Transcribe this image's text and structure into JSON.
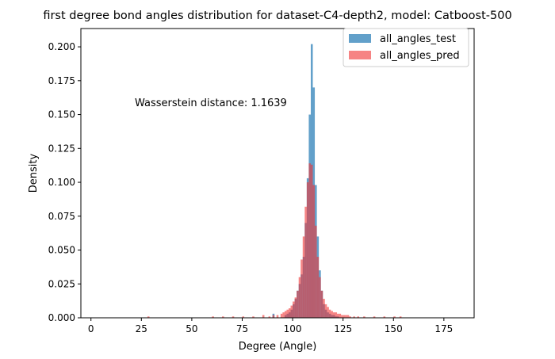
{
  "chart_data": {
    "type": "bar",
    "title": "first degree bond angles distribution for dataset-C4-depth2, model: Catboost-500",
    "xlabel": "Degree (Angle)",
    "ylabel": "Density",
    "xlim": [
      -5,
      190
    ],
    "ylim": [
      0,
      0.2135
    ],
    "xticks": [
      0,
      25,
      50,
      75,
      100,
      125,
      150,
      175
    ],
    "yticks": [
      0.0,
      0.025,
      0.05,
      0.075,
      0.1,
      0.125,
      0.15,
      0.175,
      0.2
    ],
    "ytick_labels": [
      "0.000",
      "0.025",
      "0.050",
      "0.075",
      "0.100",
      "0.125",
      "0.150",
      "0.175",
      "0.200"
    ],
    "grid": false,
    "legend_position": "top-right",
    "annotation": "Wasserstein distance: 1.1639",
    "bin_width": 1.0,
    "series": [
      {
        "name": "all_angles_test",
        "color": "#1f77b4",
        "opacity": 0.7,
        "bins": [
          [
            90,
            0.003
          ],
          [
            96,
            0.002
          ],
          [
            97,
            0.003
          ],
          [
            98,
            0.004
          ],
          [
            99,
            0.006
          ],
          [
            100,
            0.01
          ],
          [
            101,
            0.014
          ],
          [
            102,
            0.02
          ],
          [
            103,
            0.025
          ],
          [
            104,
            0.032
          ],
          [
            105,
            0.045
          ],
          [
            106,
            0.07
          ],
          [
            107,
            0.103
          ],
          [
            108,
            0.15
          ],
          [
            109,
            0.202
          ],
          [
            110,
            0.17
          ],
          [
            111,
            0.098
          ],
          [
            112,
            0.06
          ],
          [
            113,
            0.035
          ],
          [
            114,
            0.02
          ],
          [
            115,
            0.01
          ],
          [
            116,
            0.006
          ],
          [
            117,
            0.004
          ],
          [
            118,
            0.003
          ],
          [
            119,
            0.002
          ],
          [
            120,
            0.002
          ],
          [
            121,
            0.001
          ],
          [
            122,
            0.001
          ]
        ]
      },
      {
        "name": "all_angles_pred",
        "color": "#f03232",
        "opacity": 0.6,
        "bins": [
          [
            28,
            0.001
          ],
          [
            60,
            0.001
          ],
          [
            65,
            0.001
          ],
          [
            70,
            0.001
          ],
          [
            75,
            0.001
          ],
          [
            80,
            0.001
          ],
          [
            85,
            0.002
          ],
          [
            88,
            0.001
          ],
          [
            90,
            0.002
          ],
          [
            92,
            0.002
          ],
          [
            94,
            0.003
          ],
          [
            95,
            0.004
          ],
          [
            96,
            0.005
          ],
          [
            97,
            0.006
          ],
          [
            98,
            0.007
          ],
          [
            99,
            0.009
          ],
          [
            100,
            0.012
          ],
          [
            101,
            0.015
          ],
          [
            102,
            0.02
          ],
          [
            103,
            0.03
          ],
          [
            104,
            0.043
          ],
          [
            105,
            0.06
          ],
          [
            106,
            0.082
          ],
          [
            107,
            0.1
          ],
          [
            108,
            0.114
          ],
          [
            109,
            0.113
          ],
          [
            110,
            0.098
          ],
          [
            111,
            0.068
          ],
          [
            112,
            0.045
          ],
          [
            113,
            0.03
          ],
          [
            114,
            0.02
          ],
          [
            115,
            0.014
          ],
          [
            116,
            0.01
          ],
          [
            117,
            0.008
          ],
          [
            118,
            0.006
          ],
          [
            119,
            0.005
          ],
          [
            120,
            0.004
          ],
          [
            121,
            0.004
          ],
          [
            122,
            0.003
          ],
          [
            123,
            0.003
          ],
          [
            124,
            0.002
          ],
          [
            125,
            0.002
          ],
          [
            126,
            0.002
          ],
          [
            127,
            0.002
          ],
          [
            128,
            0.001
          ],
          [
            130,
            0.001
          ],
          [
            132,
            0.001
          ],
          [
            135,
            0.001
          ],
          [
            140,
            0.001
          ],
          [
            145,
            0.001
          ],
          [
            150,
            0.001
          ],
          [
            153,
            0.001
          ]
        ]
      }
    ]
  }
}
